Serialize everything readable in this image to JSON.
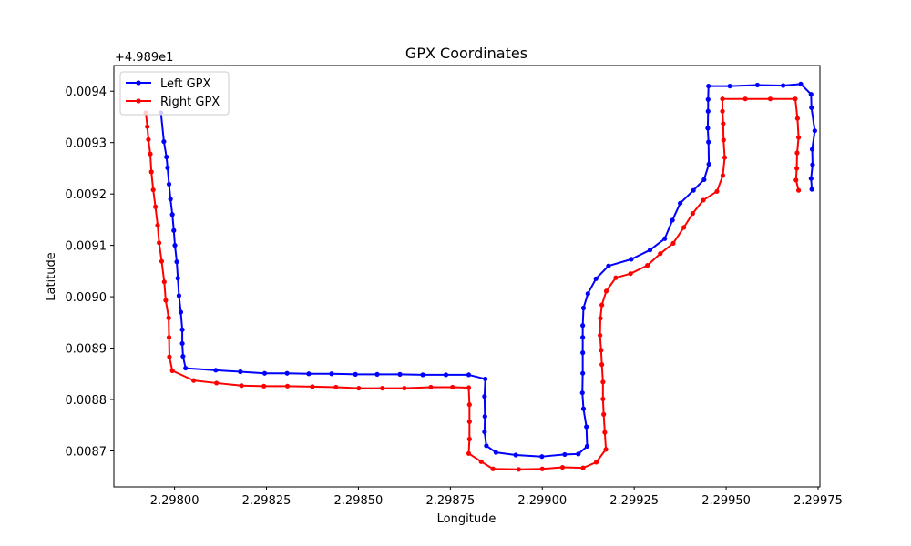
{
  "chart_data": {
    "type": "line",
    "title": "GPX Coordinates",
    "xlabel": "Longitude",
    "ylabel": "Latitude",
    "y_offset_label": "+4.989e1",
    "xlim": [
      2.297835,
      2.299755
    ],
    "ylim": [
      0.00863,
      0.00945
    ],
    "x_ticks": [
      2.298,
      2.29825,
      2.2985,
      2.29875,
      2.299,
      2.29925,
      2.2995,
      2.29975
    ],
    "x_tick_labels": [
      "2.29800",
      "2.29825",
      "2.29850",
      "2.29875",
      "2.29900",
      "2.29925",
      "2.29950",
      "2.29975"
    ],
    "y_ticks": [
      0.0087,
      0.0088,
      0.0089,
      0.009,
      0.0091,
      0.0092,
      0.0093,
      0.0094
    ],
    "y_tick_labels": [
      "0.0087",
      "0.0088",
      "0.0089",
      "0.0090",
      "0.0091",
      "0.0092",
      "0.0093",
      "0.0094"
    ],
    "grid": false,
    "legend_position": "top-left",
    "series": [
      {
        "name": "Left GPX",
        "color": "#0000ff",
        "points": [
          [
            2.297963,
            0.009358
          ],
          [
            2.297971,
            0.009302
          ],
          [
            2.297978,
            0.009272
          ],
          [
            2.297981,
            0.009251
          ],
          [
            2.297985,
            0.009219
          ],
          [
            2.297989,
            0.00919
          ],
          [
            2.297994,
            0.00916
          ],
          [
            2.297998,
            0.009129
          ],
          [
            2.298001,
            0.0091
          ],
          [
            2.298006,
            0.009068
          ],
          [
            2.298009,
            0.009036
          ],
          [
            2.298012,
            0.009002
          ],
          [
            2.298017,
            0.00897
          ],
          [
            2.298021,
            0.008936
          ],
          [
            2.298021,
            0.008909
          ],
          [
            2.298023,
            0.008884
          ],
          [
            2.29803,
            0.008861
          ],
          [
            2.298112,
            0.008857
          ],
          [
            2.298179,
            0.008854
          ],
          [
            2.298245,
            0.008851
          ],
          [
            2.298306,
            0.008851
          ],
          [
            2.298365,
            0.00885
          ],
          [
            2.298427,
            0.00885
          ],
          [
            2.298492,
            0.008849
          ],
          [
            2.298551,
            0.008849
          ],
          [
            2.298613,
            0.008849
          ],
          [
            2.298675,
            0.008848
          ],
          [
            2.298738,
            0.008848
          ],
          [
            2.2988,
            0.008848
          ],
          [
            2.298845,
            0.00884
          ],
          [
            2.298843,
            0.008806
          ],
          [
            2.298844,
            0.008767
          ],
          [
            2.298843,
            0.008737
          ],
          [
            2.298848,
            0.00871
          ],
          [
            2.298874,
            0.008697
          ],
          [
            2.298928,
            0.008692
          ],
          [
            2.298999,
            0.008689
          ],
          [
            2.299061,
            0.008693
          ],
          [
            2.299098,
            0.008694
          ],
          [
            2.299122,
            0.008709
          ],
          [
            2.29912,
            0.008747
          ],
          [
            2.299112,
            0.008782
          ],
          [
            2.299109,
            0.008813
          ],
          [
            2.29911,
            0.008851
          ],
          [
            2.29911,
            0.008891
          ],
          [
            2.29911,
            0.008921
          ],
          [
            2.29911,
            0.008944
          ],
          [
            2.299112,
            0.008978
          ],
          [
            2.299124,
            0.009006
          ],
          [
            2.299146,
            0.009035
          ],
          [
            2.29918,
            0.00906
          ],
          [
            2.299242,
            0.009073
          ],
          [
            2.299293,
            0.009091
          ],
          [
            2.299333,
            0.009113
          ],
          [
            2.299354,
            0.009149
          ],
          [
            2.299375,
            0.009182
          ],
          [
            2.299411,
            0.009207
          ],
          [
            2.29944,
            0.009228
          ],
          [
            2.299453,
            0.009258
          ],
          [
            2.299452,
            0.009301
          ],
          [
            2.29945,
            0.009328
          ],
          [
            2.299451,
            0.009361
          ],
          [
            2.299451,
            0.009384
          ],
          [
            2.299452,
            0.00941
          ],
          [
            2.29951,
            0.00941
          ],
          [
            2.299585,
            0.009412
          ],
          [
            2.299655,
            0.009411
          ],
          [
            2.299703,
            0.009414
          ],
          [
            2.299731,
            0.009394
          ],
          [
            2.299732,
            0.009368
          ],
          [
            2.299741,
            0.009323
          ],
          [
            2.299734,
            0.009287
          ],
          [
            2.299735,
            0.009257
          ],
          [
            2.299731,
            0.00923
          ],
          [
            2.299733,
            0.009209
          ]
        ]
      },
      {
        "name": "Right GPX",
        "color": "#ff0000",
        "points": [
          [
            2.297922,
            0.009358
          ],
          [
            2.297926,
            0.009331
          ],
          [
            2.297929,
            0.009306
          ],
          [
            2.297934,
            0.009278
          ],
          [
            2.297937,
            0.009243
          ],
          [
            2.297942,
            0.009208
          ],
          [
            2.297948,
            0.009175
          ],
          [
            2.297954,
            0.009139
          ],
          [
            2.297958,
            0.009105
          ],
          [
            2.297965,
            0.009069
          ],
          [
            2.297972,
            0.009029
          ],
          [
            2.297976,
            0.008993
          ],
          [
            2.297984,
            0.008959
          ],
          [
            2.297985,
            0.008921
          ],
          [
            2.297986,
            0.008883
          ],
          [
            2.297994,
            0.008856
          ],
          [
            2.298052,
            0.008837
          ],
          [
            2.298114,
            0.008832
          ],
          [
            2.298182,
            0.008827
          ],
          [
            2.298243,
            0.008826
          ],
          [
            2.298307,
            0.008826
          ],
          [
            2.298375,
            0.008825
          ],
          [
            2.298439,
            0.008824
          ],
          [
            2.298501,
            0.008822
          ],
          [
            2.298565,
            0.008822
          ],
          [
            2.298625,
            0.008822
          ],
          [
            2.298697,
            0.008824
          ],
          [
            2.298756,
            0.008824
          ],
          [
            2.2988,
            0.008823
          ],
          [
            2.298802,
            0.00879
          ],
          [
            2.298802,
            0.008757
          ],
          [
            2.298802,
            0.008723
          ],
          [
            2.2988,
            0.008695
          ],
          [
            2.298834,
            0.008679
          ],
          [
            2.298866,
            0.008665
          ],
          [
            2.298936,
            0.008664
          ],
          [
            2.299,
            0.008665
          ],
          [
            2.299055,
            0.008668
          ],
          [
            2.299111,
            0.008667
          ],
          [
            2.299147,
            0.008678
          ],
          [
            2.299173,
            0.008703
          ],
          [
            2.29917,
            0.008736
          ],
          [
            2.299167,
            0.008771
          ],
          [
            2.299165,
            0.008801
          ],
          [
            2.299165,
            0.008834
          ],
          [
            2.299162,
            0.008868
          ],
          [
            2.29916,
            0.008896
          ],
          [
            2.299157,
            0.008925
          ],
          [
            2.299158,
            0.008958
          ],
          [
            2.299162,
            0.008984
          ],
          [
            2.299174,
            0.009011
          ],
          [
            2.2992,
            0.009037
          ],
          [
            2.29924,
            0.009045
          ],
          [
            2.299286,
            0.009061
          ],
          [
            2.299321,
            0.009084
          ],
          [
            2.299356,
            0.009104
          ],
          [
            2.299385,
            0.009135
          ],
          [
            2.299409,
            0.009162
          ],
          [
            2.299438,
            0.009188
          ],
          [
            2.299475,
            0.009205
          ],
          [
            2.299491,
            0.009236
          ],
          [
            2.299496,
            0.009271
          ],
          [
            2.299493,
            0.009305
          ],
          [
            2.299492,
            0.009337
          ],
          [
            2.29949,
            0.009361
          ],
          [
            2.29949,
            0.009385
          ],
          [
            2.299552,
            0.009385
          ],
          [
            2.29962,
            0.009385
          ],
          [
            2.299688,
            0.009385
          ],
          [
            2.299694,
            0.009347
          ],
          [
            2.299697,
            0.00931
          ],
          [
            2.299693,
            0.00928
          ],
          [
            2.299692,
            0.00925
          ],
          [
            2.29969,
            0.009227
          ],
          [
            2.299697,
            0.009207
          ]
        ]
      }
    ]
  }
}
